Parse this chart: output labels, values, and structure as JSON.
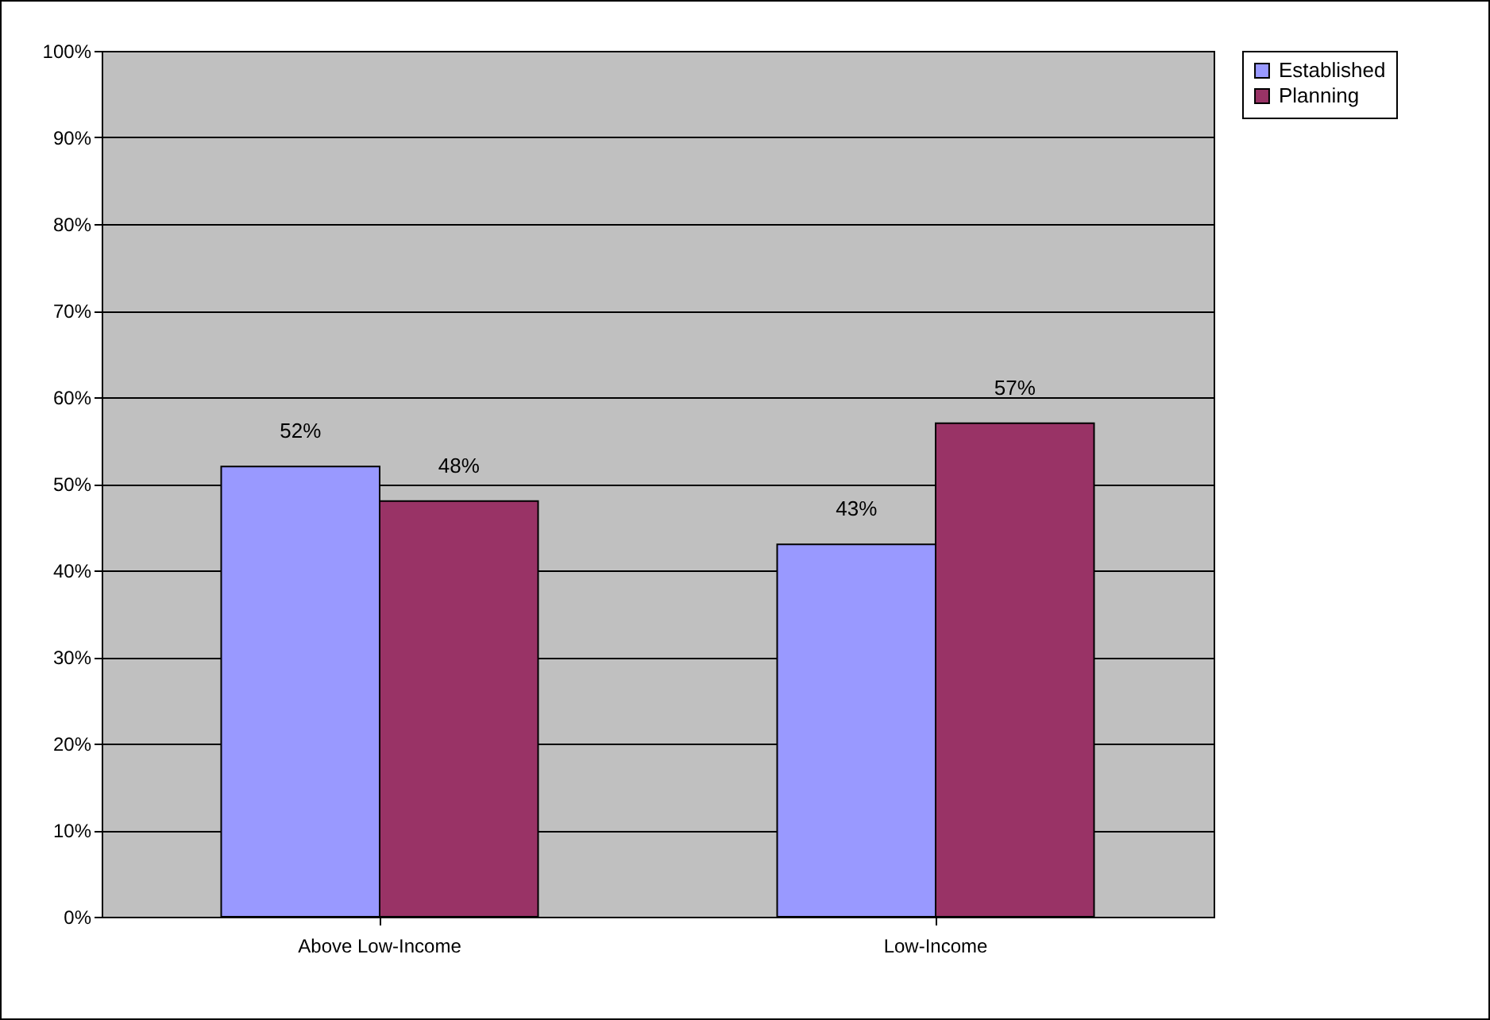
{
  "chart_data": {
    "type": "bar",
    "categories": [
      "Above Low-Income",
      "Low-Income"
    ],
    "series": [
      {
        "name": "Established",
        "color": "#9999ff",
        "values": [
          52,
          43
        ],
        "value_labels": [
          "52%",
          "43%"
        ]
      },
      {
        "name": "Planning",
        "color": "#993366",
        "values": [
          48,
          57
        ],
        "value_labels": [
          "48%",
          "57%"
        ]
      }
    ],
    "ylim": [
      0,
      100
    ],
    "yticks": [
      {
        "value": 0,
        "label": "0%"
      },
      {
        "value": 10,
        "label": "10%"
      },
      {
        "value": 20,
        "label": "20%"
      },
      {
        "value": 30,
        "label": "30%"
      },
      {
        "value": 40,
        "label": "40%"
      },
      {
        "value": 50,
        "label": "50%"
      },
      {
        "value": 60,
        "label": "60%"
      },
      {
        "value": 70,
        "label": "70%"
      },
      {
        "value": 80,
        "label": "80%"
      },
      {
        "value": 90,
        "label": "90%"
      },
      {
        "value": 100,
        "label": "100%"
      }
    ],
    "grid": "y",
    "legend": "right"
  }
}
